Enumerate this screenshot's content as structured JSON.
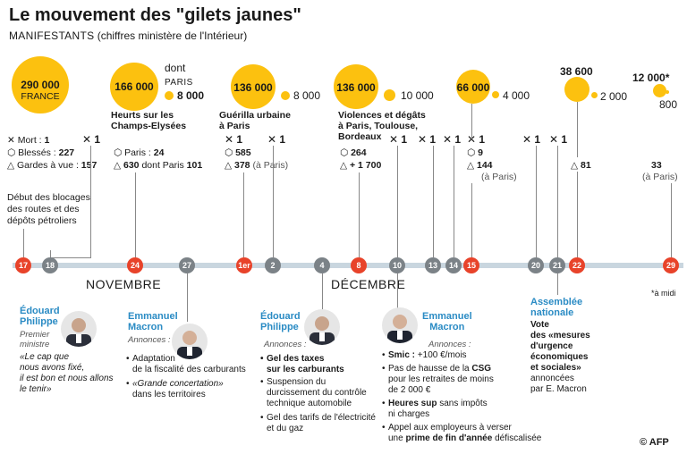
{
  "title": "Le mouvement des \"gilets jaunes\"",
  "subtitle_strong": "MANIFESTANTS",
  "subtitle_rest": " (chiffres ministère de l'Intérieur)",
  "circles": [
    {
      "value": "290 000",
      "sub": "FRANCE"
    },
    {
      "value": "166 000",
      "dont": "dont",
      "paris_label": "PARIS",
      "paris_value": "8 000"
    },
    {
      "value": "136 000",
      "paris_value": "8 000"
    },
    {
      "value": "136 000",
      "paris_value": "10 000"
    },
    {
      "value": "66 000",
      "paris_value": "4 000"
    },
    {
      "value": "38 600",
      "paris_value": "2 000"
    },
    {
      "value": "12 000*",
      "paris_value": "800"
    }
  ],
  "labels": {
    "heurts": [
      "Heurts sur les",
      "Champs-Elysées"
    ],
    "guerilla": [
      "Guérilla urbaine",
      "à Paris"
    ],
    "violences": [
      "Violences et dégâts",
      "à Paris, Toulouse,",
      "Bordeaux"
    ]
  },
  "stats": {
    "mort_label": "Mort :",
    "mort_value": "1",
    "blesses_label": "Blessés :",
    "blesses_value": "227",
    "gardes_label": "Gardes à vue :",
    "gardes_value": "157",
    "paris_label": "Paris :",
    "paris_value": "24",
    "s630": "630",
    "s630_rest": "dont Paris",
    "s630_paris": "101",
    "s585": "585",
    "s378": "378",
    "s378_rest": "(à Paris)",
    "s264": "264",
    "s1700": "+ 1 700",
    "s9": "9",
    "s144": "144",
    "s144_rest": "(à Paris)",
    "s81": "81",
    "s33": "33",
    "s33_rest": "(à Paris)",
    "x1": "1"
  },
  "debut": [
    "Début des blocages",
    "des routes et des",
    "dépôts pétroliers"
  ],
  "timeline": {
    "nodes": [
      "17",
      "18",
      "24",
      "27",
      "1er",
      "2",
      "4",
      "8",
      "10",
      "13",
      "14",
      "15",
      "20",
      "21",
      "22",
      "29"
    ],
    "month_nov": "NOVEMBRE",
    "month_dec": "DÉCEMBRE"
  },
  "note_midi": "*à midi",
  "philippe1": {
    "name": [
      "Édouard",
      "Philippe"
    ],
    "role": [
      "Premier",
      "ministre"
    ],
    "quote": [
      "«Le cap que",
      "nous avons fixé,",
      "il est bon et nous allons",
      "le tenir»"
    ]
  },
  "macron1": {
    "name": [
      "Emmanuel",
      "Macron"
    ],
    "annonces": "Annonces :",
    "items": [
      "Adaptation",
      "de la fiscalité des carburants",
      "«Grande concertation»",
      "dans les territoires"
    ]
  },
  "philippe2": {
    "name": [
      "Édouard",
      "Philippe"
    ],
    "annonces": "Annonces :",
    "items": [
      "Gel des taxes",
      "sur les carburants",
      "Suspension du",
      "durcissement du contrôle",
      "technique automobile",
      "Gel des tarifs de l'électricité",
      "et du gaz"
    ]
  },
  "macron2": {
    "name": [
      "Emmanuel",
      "Macron"
    ],
    "annonces": "Annonces :",
    "smic_b": "Smic :",
    "smic_rest": "+100 €/mois",
    "csg1": "Pas de hausse de la",
    "csg_b": "CSG",
    "csg2": "pour les retraites de moins",
    "csg3": "de 2 000 €",
    "heures_b": "Heures sup",
    "heures_rest": "sans impôts",
    "heures2": "ni charges",
    "prime1": "Appel aux employeurs à verser",
    "prime2a": "une",
    "prime_b": "prime de fin d'année",
    "prime2b": "défiscalisée"
  },
  "assemblee": {
    "name": [
      "Assemblée",
      "nationale"
    ],
    "vote": "Vote",
    "lines": [
      "des «mesures",
      "d'urgence",
      "économiques",
      "et sociales»"
    ],
    "tail": [
      "annoncées",
      "par E. Macron"
    ]
  },
  "credit": "© AFP",
  "colors": {
    "yellow": "#fcc10f",
    "red": "#e8432a",
    "gray": "#7b8287",
    "blue": "#2a8bc4"
  }
}
